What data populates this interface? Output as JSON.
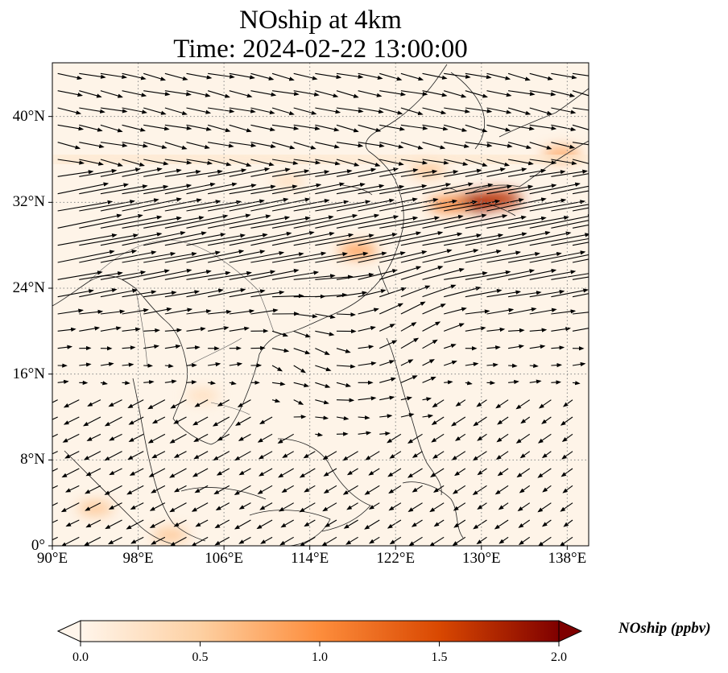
{
  "title": {
    "line1": "NOship at 4km",
    "line2": "Time: 2024-02-22 13:00:00"
  },
  "map": {
    "extent": {
      "lon": [
        90,
        140
      ],
      "lat": [
        0,
        45
      ]
    },
    "gridlines": "dotted",
    "x_ticks": [
      {
        "value": 90,
        "label": "90°E"
      },
      {
        "value": 98,
        "label": "98°E"
      },
      {
        "value": 106,
        "label": "106°E"
      },
      {
        "value": 114,
        "label": "114°E"
      },
      {
        "value": 122,
        "label": "122°E"
      },
      {
        "value": 130,
        "label": "130°E"
      },
      {
        "value": 138,
        "label": "138°E"
      }
    ],
    "y_ticks": [
      {
        "value": 0,
        "label": "0°"
      },
      {
        "value": 8,
        "label": "8°N"
      },
      {
        "value": 16,
        "label": "16°N"
      },
      {
        "value": 24,
        "label": "24°N"
      },
      {
        "value": 32,
        "label": "32°N"
      },
      {
        "value": 40,
        "label": "40°N"
      }
    ],
    "field_colormap": [
      "#fff5eb",
      "#fdd0a2",
      "#fd8d3c",
      "#d94801",
      "#7f0000"
    ],
    "hotspots": [
      {
        "lon": 129.5,
        "lat": 32.0,
        "value": 1.9
      },
      {
        "lon": 131.5,
        "lat": 32.3,
        "value": 1.7
      },
      {
        "lon": 127.0,
        "lat": 31.8,
        "value": 1.1
      },
      {
        "lon": 118.5,
        "lat": 27.5,
        "value": 0.9
      },
      {
        "lon": 137.5,
        "lat": 36.5,
        "value": 0.8
      },
      {
        "lon": 125.0,
        "lat": 35.0,
        "value": 0.6
      },
      {
        "lon": 94.0,
        "lat": 3.5,
        "value": 0.6
      },
      {
        "lon": 101.0,
        "lat": 1.0,
        "value": 0.6
      },
      {
        "lon": 112.0,
        "lat": 34.0,
        "value": 0.35
      },
      {
        "lon": 104.0,
        "lat": 14.0,
        "value": 0.35
      }
    ]
  },
  "colorbar": {
    "title": "NOship (ppbv)",
    "range": [
      0.0,
      2.0
    ],
    "extend": "both",
    "ticks": [
      {
        "value": 0.0,
        "label": "0.0"
      },
      {
        "value": 0.5,
        "label": "0.5"
      },
      {
        "value": 1.0,
        "label": "1.0"
      },
      {
        "value": 1.5,
        "label": "1.5"
      },
      {
        "value": 2.0,
        "label": "2.0"
      }
    ]
  }
}
